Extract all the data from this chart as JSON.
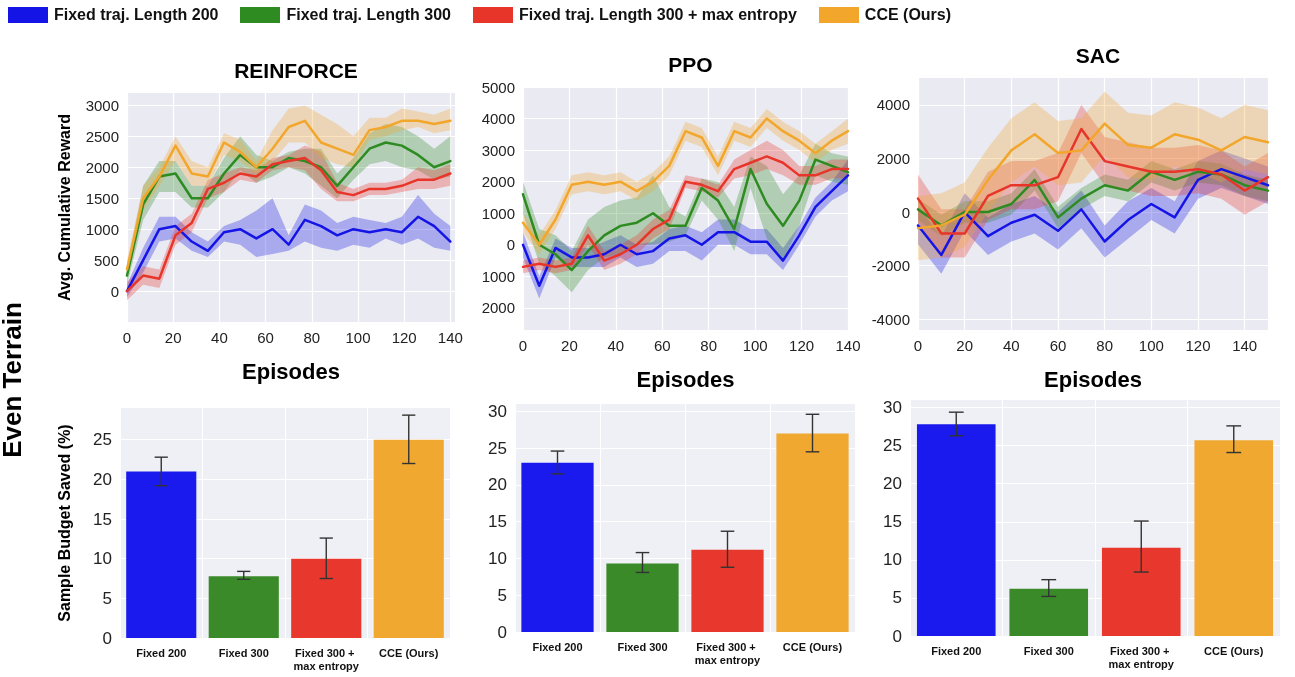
{
  "chart_data": [
    {
      "type": "line",
      "title": "REINFORCE",
      "xlabel": "Episodes",
      "ylabel": "Avg. Cumulative Reward",
      "annotations": [
        "Even Terrain"
      ],
      "legend": "top",
      "grid": true,
      "x": [
        0,
        7,
        14,
        21,
        28,
        35,
        42,
        49,
        56,
        63,
        70,
        77,
        84,
        91,
        98,
        105,
        112,
        119,
        126,
        133,
        140
      ],
      "xlim": [
        0,
        142
      ],
      "ylim": [
        -500,
        3200
      ],
      "xticks": [
        0,
        20,
        40,
        60,
        80,
        100,
        120,
        140
      ],
      "yticks": [
        0,
        500,
        1000,
        1500,
        2000,
        2500,
        3000
      ],
      "series": [
        {
          "name": "Fixed traj. Length 200",
          "color": "#1414e6",
          "values": [
            0,
            500,
            1000,
            1050,
            800,
            650,
            950,
            1000,
            850,
            1000,
            750,
            1150,
            1050,
            900,
            1000,
            950,
            1000,
            950,
            1200,
            1050,
            800
          ],
          "lower": [
            -100,
            300,
            800,
            850,
            650,
            550,
            800,
            750,
            550,
            600,
            650,
            800,
            700,
            650,
            750,
            700,
            850,
            750,
            850,
            700,
            650
          ],
          "upper": [
            100,
            700,
            1200,
            1200,
            950,
            800,
            1050,
            1150,
            1300,
            1500,
            900,
            1400,
            1300,
            1100,
            1200,
            1150,
            1100,
            1200,
            1550,
            1250,
            1050
          ]
        },
        {
          "name": "Fixed traj. Length 300",
          "color": "#2e8b22",
          "values": [
            250,
            1400,
            1850,
            1900,
            1500,
            1500,
            1900,
            2200,
            2000,
            2000,
            2150,
            2100,
            2000,
            1700,
            2000,
            2300,
            2400,
            2350,
            2200,
            2000,
            2100
          ],
          "lower": [
            100,
            1150,
            1600,
            1600,
            1350,
            1350,
            1600,
            1950,
            1750,
            1850,
            2000,
            1900,
            1700,
            1500,
            1800,
            2050,
            2100,
            2000,
            1950,
            1800,
            1850
          ],
          "upper": [
            400,
            1700,
            2100,
            2100,
            1700,
            1700,
            2150,
            2500,
            2200,
            2100,
            2250,
            2300,
            2300,
            1900,
            2150,
            2550,
            2700,
            2650,
            2500,
            2300,
            2500
          ]
        },
        {
          "name": "Fixed traj. Length 300 + max entropy",
          "color": "#e8352a",
          "values": [
            0,
            250,
            200,
            900,
            1100,
            1650,
            1750,
            1900,
            1850,
            2050,
            2100,
            2150,
            1950,
            1600,
            1550,
            1650,
            1650,
            1700,
            1800,
            1800,
            1900
          ],
          "lower": [
            -150,
            100,
            50,
            750,
            950,
            1500,
            1600,
            1800,
            1750,
            1950,
            2000,
            1950,
            1650,
            1450,
            1450,
            1550,
            1550,
            1600,
            1650,
            1650,
            1700
          ],
          "upper": [
            150,
            400,
            350,
            1050,
            1250,
            1800,
            1900,
            2000,
            1950,
            2150,
            2200,
            2350,
            2250,
            1750,
            1650,
            1750,
            1750,
            1800,
            2000,
            1950,
            2050
          ]
        },
        {
          "name": "CCE (Ours)",
          "color": "#f2a62c",
          "values": [
            350,
            1500,
            1850,
            2350,
            1900,
            1850,
            2400,
            2250,
            2000,
            2300,
            2650,
            2750,
            2400,
            2300,
            2200,
            2600,
            2650,
            2750,
            2750,
            2700,
            2750
          ],
          "lower": [
            200,
            1300,
            1700,
            2100,
            1700,
            1700,
            2200,
            2100,
            1900,
            2100,
            2400,
            2400,
            2150,
            2050,
            2000,
            2450,
            2500,
            2600,
            2650,
            2550,
            2600
          ],
          "upper": [
            500,
            1700,
            2000,
            2500,
            2100,
            2000,
            2550,
            2450,
            2100,
            2600,
            2950,
            3000,
            2850,
            2700,
            2500,
            2800,
            2800,
            2950,
            2900,
            2850,
            2950
          ]
        }
      ]
    },
    {
      "type": "line",
      "title": "PPO",
      "xlabel": "Episodes",
      "grid": true,
      "x": [
        0,
        7,
        14,
        21,
        28,
        35,
        42,
        49,
        56,
        63,
        70,
        77,
        84,
        91,
        98,
        105,
        112,
        119,
        126,
        133,
        140
      ],
      "xlim": [
        0,
        140
      ],
      "ylim": [
        -2700,
        5000
      ],
      "xticks": [
        0,
        20,
        40,
        60,
        80,
        100,
        120,
        140
      ],
      "yticks": [
        {
          "value": -2000,
          "label": "2000"
        },
        {
          "value": -1000,
          "label": "1000"
        },
        0,
        1000,
        2000,
        3000,
        4000,
        5000
      ],
      "series": [
        {
          "color": "#1414e6",
          "values": [
            0,
            -1300,
            -100,
            -400,
            -400,
            -300,
            0,
            -300,
            -200,
            200,
            300,
            0,
            400,
            400,
            100,
            100,
            -500,
            300,
            1200,
            1700,
            2200
          ],
          "lower": [
            -400,
            -1700,
            -400,
            -700,
            -700,
            -700,
            -400,
            -700,
            -600,
            -200,
            -200,
            -500,
            0,
            0,
            -300,
            -300,
            -800,
            0,
            900,
            1400,
            1700
          ],
          "upper": [
            400,
            -1000,
            200,
            -100,
            -100,
            100,
            300,
            0,
            100,
            500,
            600,
            400,
            800,
            800,
            500,
            500,
            -100,
            600,
            1500,
            2000,
            2700
          ]
        },
        {
          "color": "#2e8b22",
          "values": [
            1600,
            0,
            -300,
            -800,
            -200,
            300,
            600,
            700,
            1000,
            600,
            600,
            1800,
            1400,
            500,
            2400,
            1300,
            600,
            1400,
            2700,
            2500,
            2300
          ],
          "lower": [
            1000,
            -600,
            -1000,
            -1500,
            -800,
            -400,
            -300,
            0,
            0,
            100,
            300,
            1400,
            800,
            -200,
            1800,
            200,
            -500,
            600,
            2200,
            2000,
            1900
          ],
          "upper": [
            2000,
            500,
            300,
            -200,
            800,
            1200,
            1400,
            1500,
            2200,
            1200,
            900,
            2100,
            2000,
            1200,
            2800,
            2500,
            1600,
            2200,
            3200,
            2900,
            2800
          ]
        },
        {
          "color": "#e8352a",
          "values": [
            -700,
            -600,
            -700,
            -600,
            300,
            -500,
            -300,
            0,
            500,
            800,
            2000,
            1900,
            1700,
            2400,
            2600,
            2800,
            2600,
            2200,
            2200,
            2400,
            2400
          ],
          "lower": [
            -900,
            -800,
            -900,
            -800,
            0,
            -800,
            -600,
            -300,
            200,
            500,
            1800,
            1700,
            1500,
            2100,
            2200,
            2400,
            2200,
            1900,
            1900,
            2100,
            2100
          ],
          "upper": [
            -500,
            -400,
            -500,
            -400,
            600,
            -200,
            0,
            300,
            800,
            1100,
            2200,
            2100,
            1900,
            2700,
            3000,
            3300,
            3000,
            2500,
            2500,
            2700,
            2700
          ]
        },
        {
          "color": "#f2a62c",
          "values": [
            700,
            0,
            800,
            1900,
            2000,
            1900,
            2000,
            1700,
            2000,
            2500,
            3600,
            3400,
            2500,
            3600,
            3400,
            4000,
            3600,
            3300,
            2900,
            3300,
            3600
          ],
          "lower": [
            400,
            -300,
            500,
            1600,
            1700,
            1600,
            1700,
            1400,
            1700,
            2200,
            3300,
            3100,
            2200,
            3300,
            3100,
            3700,
            3300,
            3000,
            2600,
            3000,
            3200
          ],
          "upper": [
            1000,
            300,
            1100,
            2200,
            2300,
            2200,
            2300,
            2000,
            2300,
            2800,
            3900,
            3700,
            2800,
            3900,
            3700,
            4300,
            3900,
            3600,
            3200,
            3600,
            4000
          ]
        }
      ]
    },
    {
      "type": "line",
      "title": "SAC",
      "xlabel": "Episodes",
      "grid": true,
      "x": [
        0,
        10,
        20,
        30,
        40,
        50,
        60,
        70,
        80,
        90,
        100,
        110,
        120,
        130,
        140,
        150
      ],
      "xlim": [
        0,
        150
      ],
      "ylim": [
        -4400,
        5000
      ],
      "xticks": [
        0,
        20,
        40,
        60,
        80,
        100,
        120,
        140
      ],
      "yticks": [
        -4000,
        -2000,
        0,
        2000,
        4000
      ],
      "series": [
        {
          "color": "#1414e6",
          "values": [
            -500,
            -1600,
            0,
            -900,
            -400,
            -100,
            -700,
            100,
            -1100,
            -300,
            300,
            -200,
            1200,
            1600,
            1300,
            1000
          ],
          "lower": [
            -1200,
            -2300,
            -700,
            -1600,
            -1100,
            -800,
            -1400,
            -600,
            -1700,
            -1000,
            -300,
            -800,
            500,
            900,
            600,
            300
          ],
          "upper": [
            200,
            -900,
            700,
            -200,
            300,
            600,
            0,
            800,
            -500,
            400,
            900,
            400,
            1900,
            2300,
            2000,
            1700
          ]
        },
        {
          "color": "#2e8b22",
          "values": [
            100,
            -500,
            0,
            0,
            300,
            1200,
            -200,
            500,
            1000,
            800,
            1500,
            1200,
            1500,
            1400,
            1000,
            800
          ],
          "lower": [
            -300,
            -900,
            -400,
            -400,
            -100,
            800,
            -600,
            100,
            600,
            400,
            1100,
            800,
            1100,
            1000,
            600,
            400
          ],
          "upper": [
            500,
            -100,
            400,
            400,
            700,
            1600,
            200,
            900,
            1400,
            1200,
            1900,
            1600,
            1900,
            1800,
            1400,
            1200
          ]
        },
        {
          "color": "#e8352a",
          "values": [
            500,
            -800,
            -800,
            600,
            1000,
            1000,
            1300,
            3100,
            1900,
            1700,
            1500,
            1500,
            1600,
            1400,
            800,
            1300
          ],
          "lower": [
            -400,
            -1700,
            -1700,
            -300,
            100,
            100,
            400,
            2200,
            1000,
            800,
            600,
            600,
            700,
            500,
            -100,
            400
          ],
          "upper": [
            1400,
            100,
            100,
            1500,
            1900,
            1900,
            2200,
            4000,
            2800,
            2600,
            2400,
            2400,
            2500,
            2300,
            1700,
            2200
          ]
        },
        {
          "color": "#f2a62c",
          "values": [
            -600,
            -500,
            -100,
            1200,
            2300,
            2900,
            2200,
            2300,
            3300,
            2500,
            2400,
            2900,
            2700,
            2300,
            2800,
            2600
          ],
          "lower": [
            -1800,
            -1700,
            -1300,
            0,
            1100,
            1700,
            1000,
            1100,
            2100,
            1300,
            1200,
            1700,
            1500,
            1100,
            1600,
            1400
          ],
          "upper": [
            600,
            700,
            1100,
            2400,
            3500,
            4100,
            3400,
            3500,
            4500,
            3700,
            3600,
            4100,
            3900,
            3500,
            4000,
            3800
          ]
        }
      ]
    },
    {
      "type": "bar",
      "ylabel": "Sample Budget Saved (%)",
      "grid": true,
      "categories": [
        "Fixed 200",
        "Fixed 300",
        "Fixed 300 + max entropy",
        "CCE (Ours)"
      ],
      "values": [
        21,
        7.8,
        10,
        25
      ],
      "colors": [
        "#1a1aee",
        "#3a8a2a",
        "#e8372c",
        "#f0a830"
      ],
      "errors": [
        [
          19.2,
          22.8
        ],
        [
          7.4,
          8.4
        ],
        [
          7.5,
          12.6
        ],
        [
          22,
          28.1
        ]
      ],
      "ylim": [
        0,
        29
      ],
      "yticks": [
        0,
        5,
        10,
        15,
        20,
        25
      ]
    },
    {
      "type": "bar",
      "grid": true,
      "categories": [
        "Fixed 200",
        "Fixed 300",
        "Fixed 300 + max entropy",
        "CCE (Ours)"
      ],
      "values": [
        23,
        9.3,
        11.2,
        27
      ],
      "colors": [
        "#1a1aee",
        "#3a8a2a",
        "#e8372c",
        "#f0a830"
      ],
      "errors": [
        [
          21.5,
          24.6
        ],
        [
          8.1,
          10.8
        ],
        [
          8.8,
          13.7
        ],
        [
          24.5,
          29.6
        ]
      ],
      "ylim": [
        0,
        31
      ],
      "yticks": [
        0,
        5,
        10,
        15,
        20,
        25,
        30
      ]
    },
    {
      "type": "bar",
      "grid": true,
      "categories": [
        "Fixed 200",
        "Fixed 300",
        "Fixed 300 + max entropy",
        "CCE (Ours)"
      ],
      "values": [
        27.8,
        6.2,
        11.6,
        25.7
      ],
      "colors": [
        "#1a1aee",
        "#3a8a2a",
        "#e8372c",
        "#f0a830"
      ],
      "errors": [
        [
          26.3,
          29.4
        ],
        [
          5.2,
          7.4
        ],
        [
          8.4,
          15.1
        ],
        [
          24.1,
          27.6
        ]
      ],
      "ylim": [
        0,
        31
      ],
      "yticks": [
        0,
        5,
        10,
        15,
        20,
        25,
        30
      ]
    }
  ]
}
